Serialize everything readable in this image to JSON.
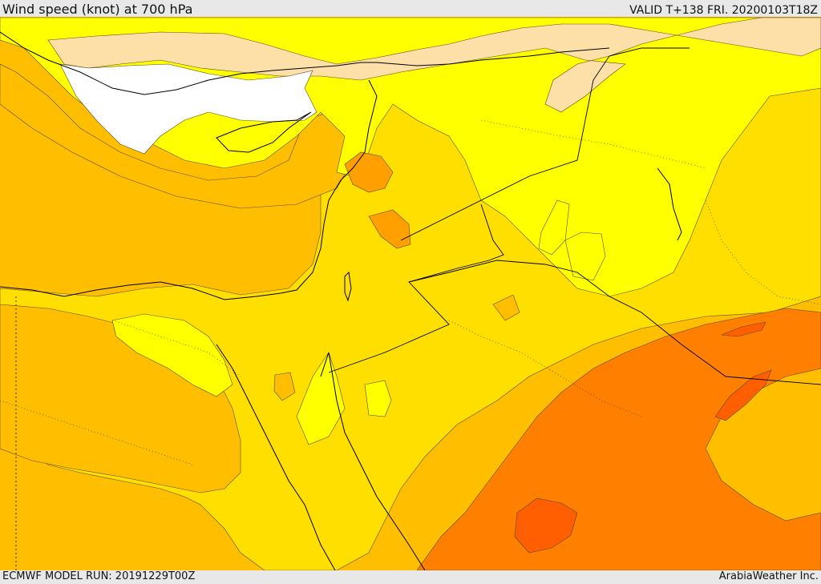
{
  "header": {
    "title": "Wind speed (knot) at 700 hPa",
    "valid": "VALID T+138 FRI. 20200103T18Z"
  },
  "footer": {
    "model_run": "ECMWF MODEL RUN: 20191229T00Z",
    "credit": "ArabiaWeather Inc."
  },
  "colors": {
    "white_band": "#ffffff",
    "peach_band": "#fde0a8",
    "yellow_band": "#ffff00",
    "gold_band": "#ffdf00",
    "amber_band": "#ffbf00",
    "orange_band": "#ff9f00",
    "dark_orange_band": "#ff7f00",
    "red_orange_band": "#ff5f00"
  }
}
